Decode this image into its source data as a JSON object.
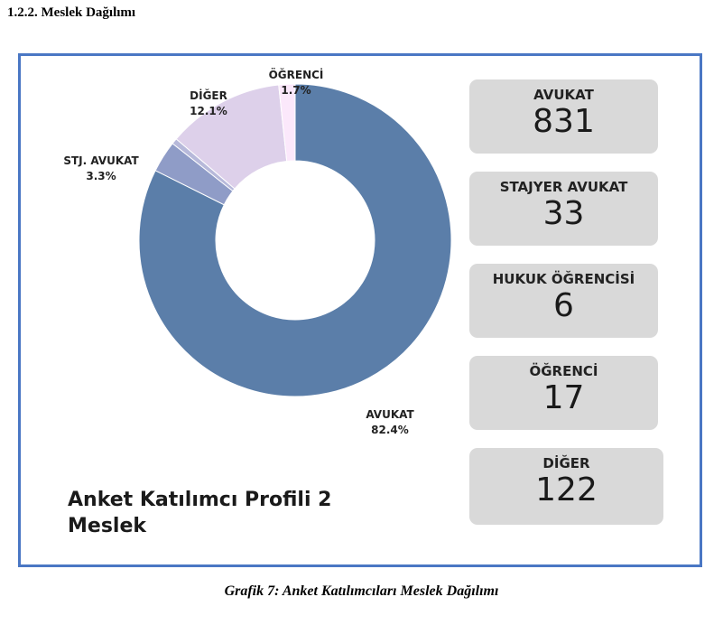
{
  "section_heading": "1.2.2. Meslek Dağılımı",
  "chart_title": "Anket Katılımcı Profili 2 Meslek",
  "caption": "Grafik  7: Anket Katılımcıları Meslek Dağılımı",
  "chart_data": {
    "type": "pie",
    "variant": "donut",
    "slices": [
      {
        "label": "AVUKAT",
        "percent": "82.4%",
        "value": 831,
        "color": "#5b7ea9"
      },
      {
        "label": "STJ. AVUKAT",
        "percent": "3.3%",
        "value": 33,
        "color": "#8f9cc7"
      },
      {
        "label": "",
        "percent": "",
        "value": 6,
        "color": "#b7b9da"
      },
      {
        "label": "DİĞER",
        "percent": "12.1%",
        "value": 122,
        "color": "#ddd0ea"
      },
      {
        "label": "ÖĞRENCİ",
        "percent": "1.7%",
        "value": 17,
        "color": "#fbe8fb"
      }
    ]
  },
  "cards": [
    {
      "label": "AVUKAT",
      "value": "831"
    },
    {
      "label": "STAJYER AVUKAT",
      "value": "33"
    },
    {
      "label": "HUKUK ÖĞRENCİSİ",
      "value": "6"
    },
    {
      "label": "ÖĞRENCİ",
      "value": "17"
    },
    {
      "label": "DİĞER",
      "value": "122"
    }
  ]
}
